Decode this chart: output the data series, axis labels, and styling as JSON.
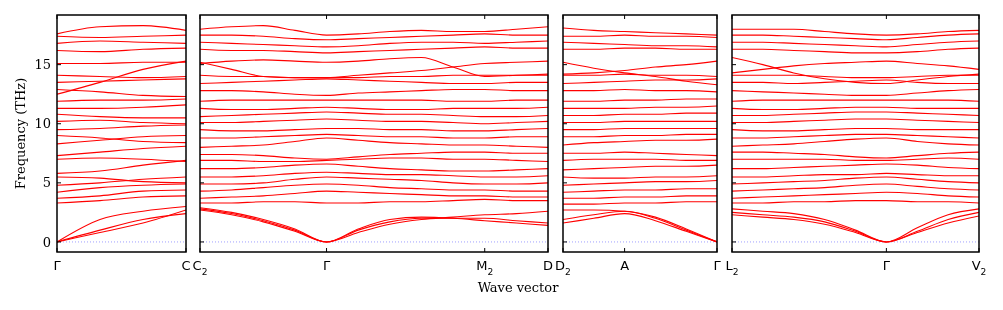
{
  "chart_data": [
    {
      "type": "line",
      "ylabel": "Frequency (THz)",
      "categories": [
        "Γ",
        null,
        null,
        "C"
      ],
      "ylim": [
        -0.85,
        19.2
      ],
      "yticks": [
        0,
        5,
        10,
        15
      ],
      "ref_lines": [
        {
          "axis": "y",
          "value": 0,
          "label": null,
          "color": "#8888ff",
          "line_style": "dotted"
        }
      ],
      "series": [
        {
          "color": "#ff0000",
          "values": [
            0,
            1.0,
            1.9,
            2.4
          ]
        },
        {
          "color": "#ff0000",
          "values": [
            0,
            1.9,
            2.6,
            3.0
          ]
        },
        {
          "color": "#ff0000",
          "values": [
            0,
            0.8,
            1.6,
            2.7
          ]
        },
        {
          "color": "#ff0000",
          "values": [
            3.3,
            3.5,
            3.8,
            3.9
          ]
        },
        {
          "color": "#ff0000",
          "values": [
            3.7,
            3.9,
            4.3,
            4.4
          ]
        },
        {
          "color": "#ff0000",
          "values": [
            4.2,
            4.6,
            4.8,
            4.9
          ]
        },
        {
          "color": "#ff0000",
          "values": [
            4.8,
            5.0,
            5.3,
            5.5
          ]
        },
        {
          "color": "#ff0000",
          "values": [
            5.5,
            5.4,
            5.1,
            5.0
          ]
        },
        {
          "color": "#ff0000",
          "values": [
            5.8,
            6.0,
            6.5,
            6.9
          ]
        },
        {
          "color": "#ff0000",
          "values": [
            7.0,
            7.1,
            7.0,
            6.8
          ]
        },
        {
          "color": "#ff0000",
          "values": [
            7.3,
            7.6,
            7.9,
            8.1
          ]
        },
        {
          "color": "#ff0000",
          "values": [
            8.3,
            8.6,
            8.9,
            9.0
          ]
        },
        {
          "color": "#ff0000",
          "values": [
            9.0,
            8.8,
            8.5,
            8.4
          ]
        },
        {
          "color": "#ff0000",
          "values": [
            9.5,
            9.6,
            9.8,
            9.9
          ]
        },
        {
          "color": "#ff0000",
          "values": [
            10.2,
            10.3,
            10.1,
            10.0
          ]
        },
        {
          "color": "#ff0000",
          "values": [
            10.8,
            10.6,
            10.5,
            10.5
          ]
        },
        {
          "color": "#ff0000",
          "values": [
            11.3,
            11.3,
            11.4,
            11.6
          ]
        },
        {
          "color": "#ff0000",
          "values": [
            11.9,
            12.0,
            12.0,
            12.1
          ]
        },
        {
          "color": "#ff0000",
          "values": [
            12.9,
            12.7,
            12.4,
            12.3
          ]
        },
        {
          "color": "#ff0000",
          "values": [
            12.5,
            13.5,
            14.6,
            15.3
          ]
        },
        {
          "color": "#ff0000",
          "values": [
            13.5,
            13.6,
            13.7,
            13.8
          ]
        },
        {
          "color": "#ff0000",
          "values": [
            14.1,
            14.0,
            13.9,
            14.0
          ]
        },
        {
          "color": "#ff0000",
          "values": [
            15.1,
            15.1,
            15.2,
            15.2
          ]
        },
        {
          "color": "#ff0000",
          "values": [
            16.2,
            16.1,
            16.3,
            16.4
          ]
        },
        {
          "color": "#ff0000",
          "values": [
            16.8,
            17.0,
            16.9,
            16.8
          ]
        },
        {
          "color": "#ff0000",
          "values": [
            17.4,
            17.3,
            17.4,
            17.5
          ]
        },
        {
          "color": "#ff0000",
          "values": [
            17.6,
            18.2,
            18.3,
            17.9
          ]
        }
      ]
    },
    {
      "type": "line",
      "xlabel": "Wave vector",
      "categories": [
        "C$_{2}$",
        null,
        null,
        null,
        "Γ",
        null,
        null,
        null,
        null,
        "M$_{2}$",
        null,
        "D"
      ],
      "ylim": [
        -0.85,
        19.2
      ],
      "yticks": [
        0,
        5,
        10,
        15
      ],
      "tick_labels": "x",
      "ref_lines": [
        {
          "axis": "y",
          "value": 0,
          "label": null,
          "color": "#8888ff",
          "line_style": "dotted"
        }
      ],
      "series": [
        {
          "color": "#ff0000",
          "values": [
            2.7,
            2.3,
            1.7,
            0.9,
            0,
            0.8,
            1.5,
            1.9,
            2.1,
            2.3,
            2.4,
            2.6
          ]
        },
        {
          "color": "#ff0000",
          "values": [
            2.8,
            2.4,
            1.8,
            1.0,
            0,
            1.0,
            1.7,
            2.0,
            2.0,
            2.0,
            1.8,
            1.6
          ]
        },
        {
          "color": "#ff0000",
          "values": [
            2.9,
            2.5,
            1.9,
            1.1,
            0,
            1.1,
            1.9,
            2.1,
            2.0,
            1.8,
            1.6,
            1.4
          ]
        },
        {
          "color": "#ff0000",
          "values": [
            3.3,
            3.3,
            3.4,
            3.4,
            3.3,
            3.3,
            3.4,
            3.4,
            3.5,
            3.6,
            3.5,
            3.5
          ]
        },
        {
          "color": "#ff0000",
          "values": [
            3.7,
            3.8,
            3.9,
            4.1,
            4.3,
            4.2,
            4.1,
            4.0,
            3.9,
            3.9,
            3.8,
            3.8
          ]
        },
        {
          "color": "#ff0000",
          "values": [
            4.3,
            4.4,
            4.6,
            4.8,
            4.9,
            4.8,
            4.6,
            4.5,
            4.4,
            4.4,
            4.3,
            4.3
          ]
        },
        {
          "color": "#ff0000",
          "values": [
            4.9,
            4.9,
            5.0,
            5.3,
            5.5,
            5.4,
            5.3,
            5.2,
            5.0,
            4.9,
            4.9,
            5.0
          ]
        },
        {
          "color": "#ff0000",
          "values": [
            5.5,
            5.5,
            5.6,
            5.8,
            5.9,
            5.8,
            5.7,
            5.7,
            5.6,
            5.5,
            5.5,
            5.6
          ]
        },
        {
          "color": "#ff0000",
          "values": [
            6.2,
            6.2,
            6.3,
            6.5,
            6.6,
            6.4,
            6.2,
            6.1,
            6.0,
            6.0,
            6.1,
            6.2
          ]
        },
        {
          "color": "#ff0000",
          "values": [
            6.9,
            6.9,
            6.8,
            6.8,
            6.9,
            7.0,
            7.1,
            7.1,
            7.0,
            7.0,
            6.9,
            6.8
          ]
        },
        {
          "color": "#ff0000",
          "values": [
            7.4,
            7.4,
            7.3,
            7.1,
            7.0,
            7.2,
            7.4,
            7.5,
            7.6,
            7.6,
            7.5,
            7.5
          ]
        },
        {
          "color": "#ff0000",
          "values": [
            8.0,
            8.1,
            8.2,
            8.5,
            8.8,
            8.6,
            8.4,
            8.3,
            8.2,
            8.2,
            8.1,
            8.0
          ]
        },
        {
          "color": "#ff0000",
          "values": [
            8.8,
            8.8,
            8.9,
            9.0,
            9.1,
            9.0,
            8.9,
            8.9,
            8.8,
            8.8,
            8.9,
            8.9
          ]
        },
        {
          "color": "#ff0000",
          "values": [
            9.5,
            9.4,
            9.4,
            9.5,
            9.6,
            9.6,
            9.5,
            9.5,
            9.4,
            9.4,
            9.5,
            9.6
          ]
        },
        {
          "color": "#ff0000",
          "values": [
            10.1,
            10.1,
            10.2,
            10.3,
            10.4,
            10.3,
            10.2,
            10.2,
            10.1,
            10.0,
            10.1,
            10.2
          ]
        },
        {
          "color": "#ff0000",
          "values": [
            10.6,
            10.7,
            10.8,
            10.9,
            11.0,
            10.9,
            10.8,
            10.8,
            10.7,
            10.6,
            10.6,
            10.7
          ]
        },
        {
          "color": "#ff0000",
          "values": [
            11.3,
            11.2,
            11.2,
            11.3,
            11.4,
            11.3,
            11.2,
            11.2,
            11.3,
            11.3,
            11.3,
            11.4
          ]
        },
        {
          "color": "#ff0000",
          "values": [
            11.9,
            12.0,
            12.0,
            12.0,
            12.0,
            12.0,
            12.0,
            12.0,
            11.9,
            11.9,
            12.0,
            12.0
          ]
        },
        {
          "color": "#ff0000",
          "values": [
            12.8,
            12.8,
            12.7,
            12.5,
            12.4,
            12.6,
            12.7,
            12.8,
            12.9,
            12.9,
            12.8,
            12.8
          ]
        },
        {
          "color": "#ff0000",
          "values": [
            13.4,
            13.5,
            13.6,
            13.7,
            13.8,
            13.7,
            13.6,
            13.5,
            13.4,
            13.4,
            13.5,
            13.5
          ]
        },
        {
          "color": "#ff0000",
          "values": [
            14.1,
            14.0,
            14.0,
            13.9,
            13.9,
            13.9,
            14.0,
            14.0,
            14.1,
            14.1,
            14.1,
            14.1
          ]
        },
        {
          "color": "#ff0000",
          "values": [
            15.2,
            14.6,
            14.0,
            13.9,
            13.9,
            14.1,
            14.3,
            14.5,
            14.8,
            15.1,
            15.2,
            15.3
          ]
        },
        {
          "color": "#ff0000",
          "values": [
            15.1,
            15.3,
            15.4,
            15.3,
            15.2,
            15.3,
            15.5,
            15.6,
            14.8,
            14.0,
            14.1,
            14.2
          ]
        },
        {
          "color": "#ff0000",
          "values": [
            16.3,
            16.2,
            16.2,
            16.1,
            16.0,
            16.1,
            16.2,
            16.3,
            16.4,
            16.5,
            16.4,
            16.4
          ]
        },
        {
          "color": "#ff0000",
          "values": [
            16.9,
            16.8,
            16.7,
            16.6,
            16.5,
            16.6,
            16.8,
            16.9,
            16.9,
            16.8,
            16.9,
            17.0
          ]
        },
        {
          "color": "#ff0000",
          "values": [
            17.5,
            17.5,
            17.4,
            17.2,
            17.1,
            17.2,
            17.3,
            17.4,
            17.5,
            17.6,
            17.5,
            17.5
          ]
        },
        {
          "color": "#ff0000",
          "values": [
            18.0,
            18.2,
            18.3,
            17.9,
            17.5,
            17.6,
            17.8,
            17.9,
            17.8,
            17.8,
            18.0,
            18.2
          ]
        }
      ]
    },
    {
      "type": "line",
      "categories": [
        "D$_{2}$",
        null,
        "A",
        null,
        null,
        "Γ"
      ],
      "ylim": [
        -0.85,
        19.2
      ],
      "yticks": [
        0,
        5,
        10,
        15
      ],
      "tick_labels": "x",
      "ref_lines": [
        {
          "axis": "y",
          "value": 0,
          "label": null,
          "color": "#8888ff",
          "line_style": "dotted"
        }
      ],
      "series": [
        {
          "color": "#ff0000",
          "values": [
            1.6,
            2.0,
            2.4,
            1.8,
            0.9,
            0
          ]
        },
        {
          "color": "#ff0000",
          "values": [
            1.9,
            2.3,
            2.6,
            2.0,
            1.0,
            0
          ]
        },
        {
          "color": "#ff0000",
          "values": [
            2.7,
            2.7,
            2.6,
            2.1,
            1.1,
            0
          ]
        },
        {
          "color": "#ff0000",
          "values": [
            3.2,
            3.2,
            3.3,
            3.3,
            3.4,
            3.4
          ]
        },
        {
          "color": "#ff0000",
          "values": [
            3.7,
            3.7,
            3.8,
            3.8,
            3.9,
            3.9
          ]
        },
        {
          "color": "#ff0000",
          "values": [
            4.2,
            4.3,
            4.4,
            4.4,
            4.5,
            4.5
          ]
        },
        {
          "color": "#ff0000",
          "values": [
            4.8,
            4.9,
            5.0,
            5.1,
            5.1,
            5.2
          ]
        },
        {
          "color": "#ff0000",
          "values": [
            5.5,
            5.4,
            5.4,
            5.5,
            5.5,
            5.6
          ]
        },
        {
          "color": "#ff0000",
          "values": [
            6.1,
            6.2,
            6.3,
            6.4,
            6.4,
            6.5
          ]
        },
        {
          "color": "#ff0000",
          "values": [
            6.9,
            7.0,
            7.0,
            7.0,
            6.9,
            6.9
          ]
        },
        {
          "color": "#ff0000",
          "values": [
            7.5,
            7.5,
            7.6,
            7.5,
            7.4,
            7.3
          ]
        },
        {
          "color": "#ff0000",
          "values": [
            8.2,
            8.4,
            8.5,
            8.6,
            8.6,
            8.7
          ]
        },
        {
          "color": "#ff0000",
          "values": [
            8.9,
            8.9,
            9.0,
            9.0,
            9.1,
            9.1
          ]
        },
        {
          "color": "#ff0000",
          "values": [
            9.5,
            9.5,
            9.6,
            9.6,
            9.6,
            9.6
          ]
        },
        {
          "color": "#ff0000",
          "values": [
            10.1,
            10.1,
            10.2,
            10.2,
            10.2,
            10.2
          ]
        },
        {
          "color": "#ff0000",
          "values": [
            10.7,
            10.7,
            10.8,
            10.8,
            10.9,
            10.9
          ]
        },
        {
          "color": "#ff0000",
          "values": [
            11.3,
            11.3,
            11.3,
            11.4,
            11.4,
            11.5
          ]
        },
        {
          "color": "#ff0000",
          "values": [
            11.9,
            11.9,
            12.0,
            12.0,
            12.1,
            12.1
          ]
        },
        {
          "color": "#ff0000",
          "values": [
            12.8,
            12.8,
            12.9,
            12.8,
            12.8,
            12.7
          ]
        },
        {
          "color": "#ff0000",
          "values": [
            13.4,
            13.5,
            13.6,
            13.7,
            13.7,
            13.8
          ]
        },
        {
          "color": "#ff0000",
          "values": [
            14.1,
            14.1,
            14.2,
            14.1,
            14.1,
            14.0
          ]
        },
        {
          "color": "#ff0000",
          "values": [
            15.2,
            14.7,
            14.3,
            14.0,
            13.6,
            13.3
          ]
        },
        {
          "color": "#ff0000",
          "values": [
            14.2,
            14.3,
            14.5,
            14.8,
            15.0,
            15.3
          ]
        },
        {
          "color": "#ff0000",
          "values": [
            16.3,
            16.3,
            16.4,
            16.4,
            16.3,
            16.3
          ]
        },
        {
          "color": "#ff0000",
          "values": [
            16.9,
            16.8,
            16.7,
            16.6,
            16.6,
            16.5
          ]
        },
        {
          "color": "#ff0000",
          "values": [
            17.4,
            17.4,
            17.5,
            17.4,
            17.4,
            17.3
          ]
        },
        {
          "color": "#ff0000",
          "values": [
            18.1,
            17.9,
            17.8,
            17.7,
            17.6,
            17.5
          ]
        }
      ]
    },
    {
      "type": "line",
      "categories": [
        "L$_{2}$",
        null,
        null,
        null,
        null,
        "Γ",
        null,
        null,
        "V$_{2}$"
      ],
      "ylim": [
        -0.85,
        19.2
      ],
      "yticks": [
        0,
        5,
        10,
        15
      ],
      "tick_labels": "x",
      "ref_lines": [
        {
          "axis": "y",
          "value": 0,
          "label": null,
          "color": "#8888ff",
          "line_style": "dotted"
        }
      ],
      "series": [
        {
          "color": "#ff0000",
          "values": [
            2.3,
            2.1,
            1.9,
            1.5,
            0.8,
            0,
            0.8,
            1.6,
            2.2
          ]
        },
        {
          "color": "#ff0000",
          "values": [
            2.5,
            2.3,
            2.1,
            1.7,
            0.9,
            0,
            0.9,
            1.9,
            2.5
          ]
        },
        {
          "color": "#ff0000",
          "values": [
            2.8,
            2.6,
            2.4,
            1.9,
            1.0,
            0,
            1.2,
            2.3,
            2.8
          ]
        },
        {
          "color": "#ff0000",
          "values": [
            3.3,
            3.3,
            3.4,
            3.4,
            3.5,
            3.5,
            3.4,
            3.4,
            3.3
          ]
        },
        {
          "color": "#ff0000",
          "values": [
            3.7,
            3.8,
            3.9,
            4.0,
            4.1,
            4.2,
            4.1,
            3.9,
            3.8
          ]
        },
        {
          "color": "#ff0000",
          "values": [
            4.3,
            4.4,
            4.5,
            4.6,
            4.8,
            4.9,
            4.7,
            4.5,
            4.4
          ]
        },
        {
          "color": "#ff0000",
          "values": [
            4.9,
            5.0,
            5.1,
            5.2,
            5.4,
            5.5,
            5.3,
            5.1,
            5.0
          ]
        },
        {
          "color": "#ff0000",
          "values": [
            5.5,
            5.5,
            5.6,
            5.7,
            5.7,
            5.8,
            5.7,
            5.6,
            5.6
          ]
        },
        {
          "color": "#ff0000",
          "values": [
            6.2,
            6.2,
            6.3,
            6.4,
            6.5,
            6.6,
            6.5,
            6.3,
            6.2
          ]
        },
        {
          "color": "#ff0000",
          "values": [
            7.0,
            7.0,
            7.0,
            7.0,
            6.9,
            6.9,
            7.0,
            7.1,
            7.0
          ]
        },
        {
          "color": "#ff0000",
          "values": [
            7.6,
            7.6,
            7.5,
            7.4,
            7.2,
            7.1,
            7.3,
            7.5,
            7.6
          ]
        },
        {
          "color": "#ff0000",
          "values": [
            8.1,
            8.2,
            8.3,
            8.5,
            8.7,
            8.8,
            8.5,
            8.3,
            8.2
          ]
        },
        {
          "color": "#ff0000",
          "values": [
            8.8,
            8.8,
            8.9,
            9.0,
            9.1,
            9.1,
            9.0,
            8.9,
            8.8
          ]
        },
        {
          "color": "#ff0000",
          "values": [
            9.5,
            9.4,
            9.4,
            9.5,
            9.6,
            9.6,
            9.5,
            9.5,
            9.5
          ]
        },
        {
          "color": "#ff0000",
          "values": [
            10.1,
            10.1,
            10.2,
            10.3,
            10.4,
            10.4,
            10.3,
            10.2,
            10.1
          ]
        },
        {
          "color": "#ff0000",
          "values": [
            10.7,
            10.7,
            10.8,
            10.9,
            11.0,
            11.0,
            10.9,
            10.8,
            10.7
          ]
        },
        {
          "color": "#ff0000",
          "values": [
            11.3,
            11.2,
            11.2,
            11.3,
            11.4,
            11.4,
            11.3,
            11.3,
            11.3
          ]
        },
        {
          "color": "#ff0000",
          "values": [
            11.9,
            12.0,
            12.0,
            12.0,
            12.0,
            12.0,
            12.0,
            12.0,
            11.9
          ]
        },
        {
          "color": "#ff0000",
          "values": [
            12.8,
            12.7,
            12.6,
            12.5,
            12.4,
            12.4,
            12.6,
            12.8,
            12.9
          ]
        },
        {
          "color": "#ff0000",
          "values": [
            13.5,
            13.5,
            13.4,
            13.5,
            13.6,
            13.7,
            13.5,
            13.4,
            13.4
          ]
        },
        {
          "color": "#ff0000",
          "values": [
            14.1,
            14.1,
            14.1,
            14.0,
            13.9,
            13.9,
            14.0,
            14.1,
            14.1
          ]
        },
        {
          "color": "#ff0000",
          "values": [
            15.6,
            15.0,
            14.3,
            13.8,
            13.5,
            13.4,
            13.7,
            14.0,
            14.2
          ]
        },
        {
          "color": "#ff0000",
          "values": [
            14.3,
            14.6,
            14.9,
            15.1,
            15.2,
            15.3,
            15.1,
            14.9,
            14.6
          ]
        },
        {
          "color": "#ff0000",
          "values": [
            16.3,
            16.3,
            16.2,
            16.1,
            16.0,
            16.0,
            16.1,
            16.3,
            16.4
          ]
        },
        {
          "color": "#ff0000",
          "values": [
            16.9,
            16.9,
            16.8,
            16.7,
            16.6,
            16.5,
            16.7,
            16.9,
            17.0
          ]
        },
        {
          "color": "#ff0000",
          "values": [
            17.5,
            17.5,
            17.4,
            17.3,
            17.2,
            17.1,
            17.3,
            17.5,
            17.6
          ]
        },
        {
          "color": "#ff0000",
          "values": [
            18.0,
            18.0,
            18.0,
            17.8,
            17.6,
            17.5,
            17.6,
            17.8,
            17.9
          ]
        }
      ]
    }
  ]
}
